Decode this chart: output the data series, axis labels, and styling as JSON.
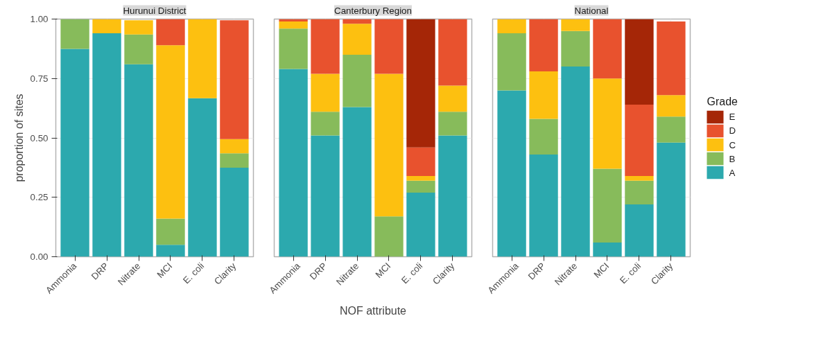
{
  "chart_data": [
    {
      "type": "bar",
      "stacked": true,
      "title": "Hurunui District",
      "ylabel": "proportion of sites",
      "categories": [
        "Ammonia",
        "DRP",
        "Nitrate",
        "MCI",
        "E. coli",
        "Clarity"
      ],
      "ylim": [
        0,
        1
      ],
      "yticks": [
        {
          "value": 0,
          "label": "0.00"
        },
        {
          "value": 0.25,
          "label": "0.25"
        },
        {
          "value": 0.5,
          "label": "0.50"
        },
        {
          "value": 0.75,
          "label": "0.75"
        },
        {
          "value": 1,
          "label": "1.00"
        }
      ],
      "grid": true,
      "series": [
        {
          "color": "#2ca9ae",
          "values": [
            0.875,
            0.94,
            0.81,
            0.05,
            0.667,
            0.375
          ]
        },
        {
          "color": "#87bb5b",
          "values": [
            0.125,
            0,
            0.125,
            0.11,
            0,
            0.06
          ]
        },
        {
          "color": "#fdc010",
          "values": [
            0,
            0.06,
            0.06,
            0.73,
            0.333,
            0.06
          ]
        },
        {
          "color": "#e8522e",
          "values": [
            0,
            0,
            0,
            0.11,
            0,
            0.5
          ]
        },
        {
          "color": "#a52607",
          "values": [
            0,
            0,
            0,
            0,
            0,
            0
          ]
        }
      ]
    },
    {
      "type": "bar",
      "stacked": true,
      "title": "Canterbury Region",
      "xlabel": "NOF attribute",
      "categories": [
        "Ammonia",
        "DRP",
        "Nitrate",
        "MCI",
        "E. coli",
        "Clarity"
      ],
      "ylim": [
        0,
        1
      ],
      "yticks": [
        0,
        0.25,
        0.5,
        0.75,
        1
      ],
      "grid": true,
      "tick_labels": "x",
      "series": [
        {
          "color": "#2ca9ae",
          "values": [
            0.79,
            0.51,
            0.63,
            0,
            0.27,
            0.51
          ]
        },
        {
          "color": "#87bb5b",
          "values": [
            0.17,
            0.1,
            0.22,
            0.17,
            0.05,
            0.1
          ]
        },
        {
          "color": "#fdc010",
          "values": [
            0.03,
            0.16,
            0.13,
            0.6,
            0.02,
            0.11
          ]
        },
        {
          "color": "#e8522e",
          "values": [
            0.01,
            0.23,
            0.02,
            0.23,
            0.12,
            0.28
          ]
        },
        {
          "color": "#a52607",
          "values": [
            0,
            0,
            0,
            0,
            0.54,
            0
          ]
        }
      ]
    },
    {
      "type": "bar",
      "stacked": true,
      "title": "National",
      "legend_title": "Grade",
      "legend": "right",
      "categories": [
        "Ammonia",
        "DRP",
        "Nitrate",
        "MCI",
        "E. coli",
        "Clarity"
      ],
      "ylim": [
        0,
        1
      ],
      "yticks": [
        0,
        0.25,
        0.5,
        0.75,
        1
      ],
      "grid": true,
      "tick_labels": "x",
      "series": [
        {
          "name": "A",
          "color": "#2ca9ae",
          "values": [
            0.7,
            0.43,
            0.8,
            0.06,
            0.22,
            0.48
          ]
        },
        {
          "name": "B",
          "color": "#87bb5b",
          "values": [
            0.24,
            0.15,
            0.15,
            0.31,
            0.1,
            0.11
          ]
        },
        {
          "name": "C",
          "color": "#fdc010",
          "values": [
            0.06,
            0.2,
            0.05,
            0.38,
            0.02,
            0.09
          ]
        },
        {
          "name": "D",
          "color": "#e8522e",
          "values": [
            0,
            0.22,
            0,
            0.25,
            0.3,
            0.31
          ]
        },
        {
          "name": "E",
          "color": "#a52607",
          "values": [
            0,
            0,
            0,
            0,
            0.36,
            0
          ]
        }
      ]
    }
  ]
}
